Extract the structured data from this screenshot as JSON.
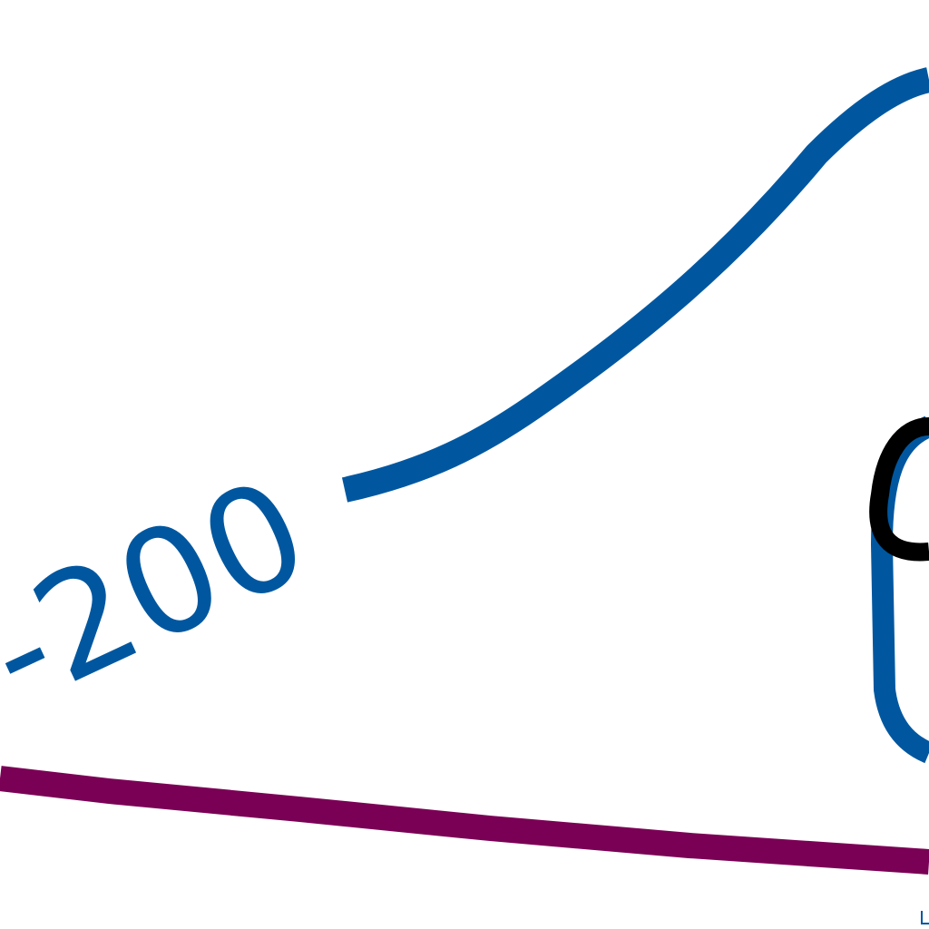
{
  "chart_data": {
    "type": "line",
    "title": "",
    "xlabel": "",
    "ylabel": "",
    "series": [
      {
        "color": "#0057a0",
        "contour_level_label": "-200"
      },
      {
        "color": "#7a0055"
      },
      {
        "color": "#000000"
      }
    ],
    "grid": false,
    "legend": "none"
  }
}
